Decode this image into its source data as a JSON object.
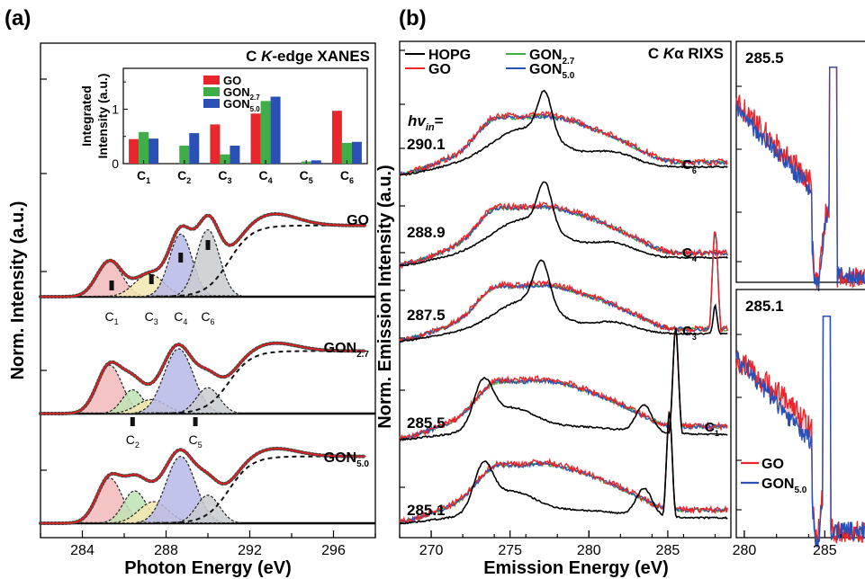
{
  "panel_a": {
    "label": "(a)",
    "title": "C K-edge XANES",
    "title_parts": [
      "C ",
      "K",
      "-edge XANES"
    ],
    "xlabel": "Photon Energy (eV)",
    "ylabel": "Norm. Intensity (a.u.)",
    "xticks": [
      "284",
      "288",
      "292",
      "296"
    ],
    "samples": [
      {
        "name": "GO",
        "base": "GO",
        "sub": ""
      },
      {
        "name": "GON2.7",
        "base": "GON",
        "sub": "2.7"
      },
      {
        "name": "GON5.0",
        "base": "GON",
        "sub": "5.0"
      }
    ],
    "peak_labels_top": [
      {
        "base": "C",
        "sub": "1",
        "energy": 285.4
      },
      {
        "base": "C",
        "sub": "3",
        "energy": 287.3
      },
      {
        "base": "C",
        "sub": "4",
        "energy": 288.7
      },
      {
        "base": "C",
        "sub": "6",
        "energy": 290.0
      }
    ],
    "peak_labels_mid": [
      {
        "base": "C",
        "sub": "2",
        "energy": 286.4
      },
      {
        "base": "C",
        "sub": "5",
        "energy": 289.4
      }
    ],
    "colors": {
      "fit": "#e02020",
      "data_marker": "#222222",
      "c1": "#f2b8b8",
      "c2": "#bfe3b4",
      "c3": "#f3e6b0",
      "c4": "#b7b9e6",
      "c6": "#c9ccd0"
    }
  },
  "inset": {
    "ylabel_line1": "Integrated",
    "ylabel_line2": "Intensity (a.u.)",
    "yticks": [
      "0",
      "1"
    ],
    "legend": [
      {
        "base": "GO",
        "sub": "",
        "color": "#e8262b"
      },
      {
        "base": "GON",
        "sub": "2.7",
        "color": "#3fae49"
      },
      {
        "base": "GON",
        "sub": "5.0",
        "color": "#2a4fb5"
      }
    ]
  },
  "panel_b": {
    "label": "(b)",
    "title_parts": [
      "C ",
      "K",
      "α RIXS"
    ],
    "xlabel": "Emission Energy (eV)",
    "ylabel": "Norm. Emission Intensity (a.u.)",
    "xticks": [
      "270",
      "275",
      "280",
      "285"
    ],
    "hv_label": {
      "base": "hv",
      "sub": "in",
      "suffix": "="
    },
    "legend": [
      {
        "base": "HOPG",
        "sub": "",
        "color": "#000000"
      },
      {
        "base": "GO",
        "sub": "",
        "color": "#e8262b"
      },
      {
        "base": "GON",
        "sub": "2.7",
        "color": "#3fae49"
      },
      {
        "base": "GON",
        "sub": "5.0",
        "color": "#2a4fb5"
      }
    ],
    "excitations": [
      {
        "label": "290.1",
        "peak": "C",
        "peak_sub": "6"
      },
      {
        "label": "288.9",
        "peak": "C",
        "peak_sub": "4"
      },
      {
        "label": "287.5",
        "peak": "C",
        "peak_sub": "3"
      },
      {
        "label": "285.5",
        "peak": "C",
        "peak_sub": "1"
      },
      {
        "label": "285.1",
        "peak": "",
        "peak_sub": ""
      }
    ]
  },
  "panel_c": {
    "top_label": "285.5",
    "bottom_label": "285.1",
    "xticks": [
      "280",
      "285"
    ],
    "legend": [
      {
        "base": "GO",
        "sub": "",
        "color": "#e8262b"
      },
      {
        "base": "GON",
        "sub": "5.0",
        "color": "#2a4fb5"
      }
    ]
  },
  "chart_data": [
    {
      "type": "line",
      "title": "C K-edge XANES",
      "xlabel": "Photon Energy (eV)",
      "ylabel": "Norm. Intensity (a.u.)",
      "xlim": [
        282,
        298
      ],
      "series": [
        {
          "name": "GO",
          "peaks": [
            {
              "label": "C1",
              "energy": 285.4
            },
            {
              "label": "C3",
              "energy": 287.3
            },
            {
              "label": "C4",
              "energy": 288.7
            },
            {
              "label": "C6",
              "energy": 290.0
            }
          ]
        },
        {
          "name": "GON2.7",
          "peaks": [
            {
              "label": "C1",
              "energy": 285.4
            },
            {
              "label": "C2",
              "energy": 286.4
            },
            {
              "label": "C3",
              "energy": 287.3
            },
            {
              "label": "C4",
              "energy": 288.7
            },
            {
              "label": "C5",
              "energy": 289.4
            },
            {
              "label": "C6",
              "energy": 290.0
            }
          ]
        },
        {
          "name": "GON5.0",
          "peaks": [
            {
              "label": "C1",
              "energy": 285.4
            },
            {
              "label": "C2",
              "energy": 286.4
            },
            {
              "label": "C3",
              "energy": 287.3
            },
            {
              "label": "C4",
              "energy": 288.7
            },
            {
              "label": "C5",
              "energy": 289.4
            },
            {
              "label": "C6",
              "energy": 290.0
            }
          ]
        }
      ]
    },
    {
      "type": "bar",
      "ylabel": "Integrated Intensity (a.u.)",
      "categories": [
        "C1",
        "C2",
        "C3",
        "C4",
        "C5",
        "C6"
      ],
      "ylim": [
        0,
        1.75
      ],
      "series": [
        {
          "name": "GO",
          "values": [
            0.45,
            0,
            0.72,
            0.92,
            0,
            0.97
          ]
        },
        {
          "name": "GON2.7",
          "values": [
            0.58,
            0.33,
            0.17,
            1.15,
            0.04,
            0.38
          ]
        },
        {
          "name": "GON5.0",
          "values": [
            0.46,
            0.56,
            0.33,
            1.23,
            0.06,
            0.4
          ]
        }
      ]
    },
    {
      "type": "line",
      "title": "C Kα RIXS",
      "xlabel": "Emission Energy (eV)",
      "ylabel": "Norm. Emission Intensity (a.u.)",
      "xlim": [
        268,
        289
      ],
      "series": [
        {
          "name": "HOPG"
        },
        {
          "name": "GO"
        },
        {
          "name": "GON2.7"
        },
        {
          "name": "GON5.0"
        }
      ],
      "excitation_energies_eV": [
        290.1,
        288.9,
        287.5,
        285.5,
        285.1
      ]
    },
    {
      "type": "line",
      "xlim": [
        279.5,
        287.5
      ],
      "series": [
        {
          "name": "GO"
        },
        {
          "name": "GON5.0"
        }
      ],
      "excitation_energies_eV": [
        285.5,
        285.1
      ]
    }
  ]
}
